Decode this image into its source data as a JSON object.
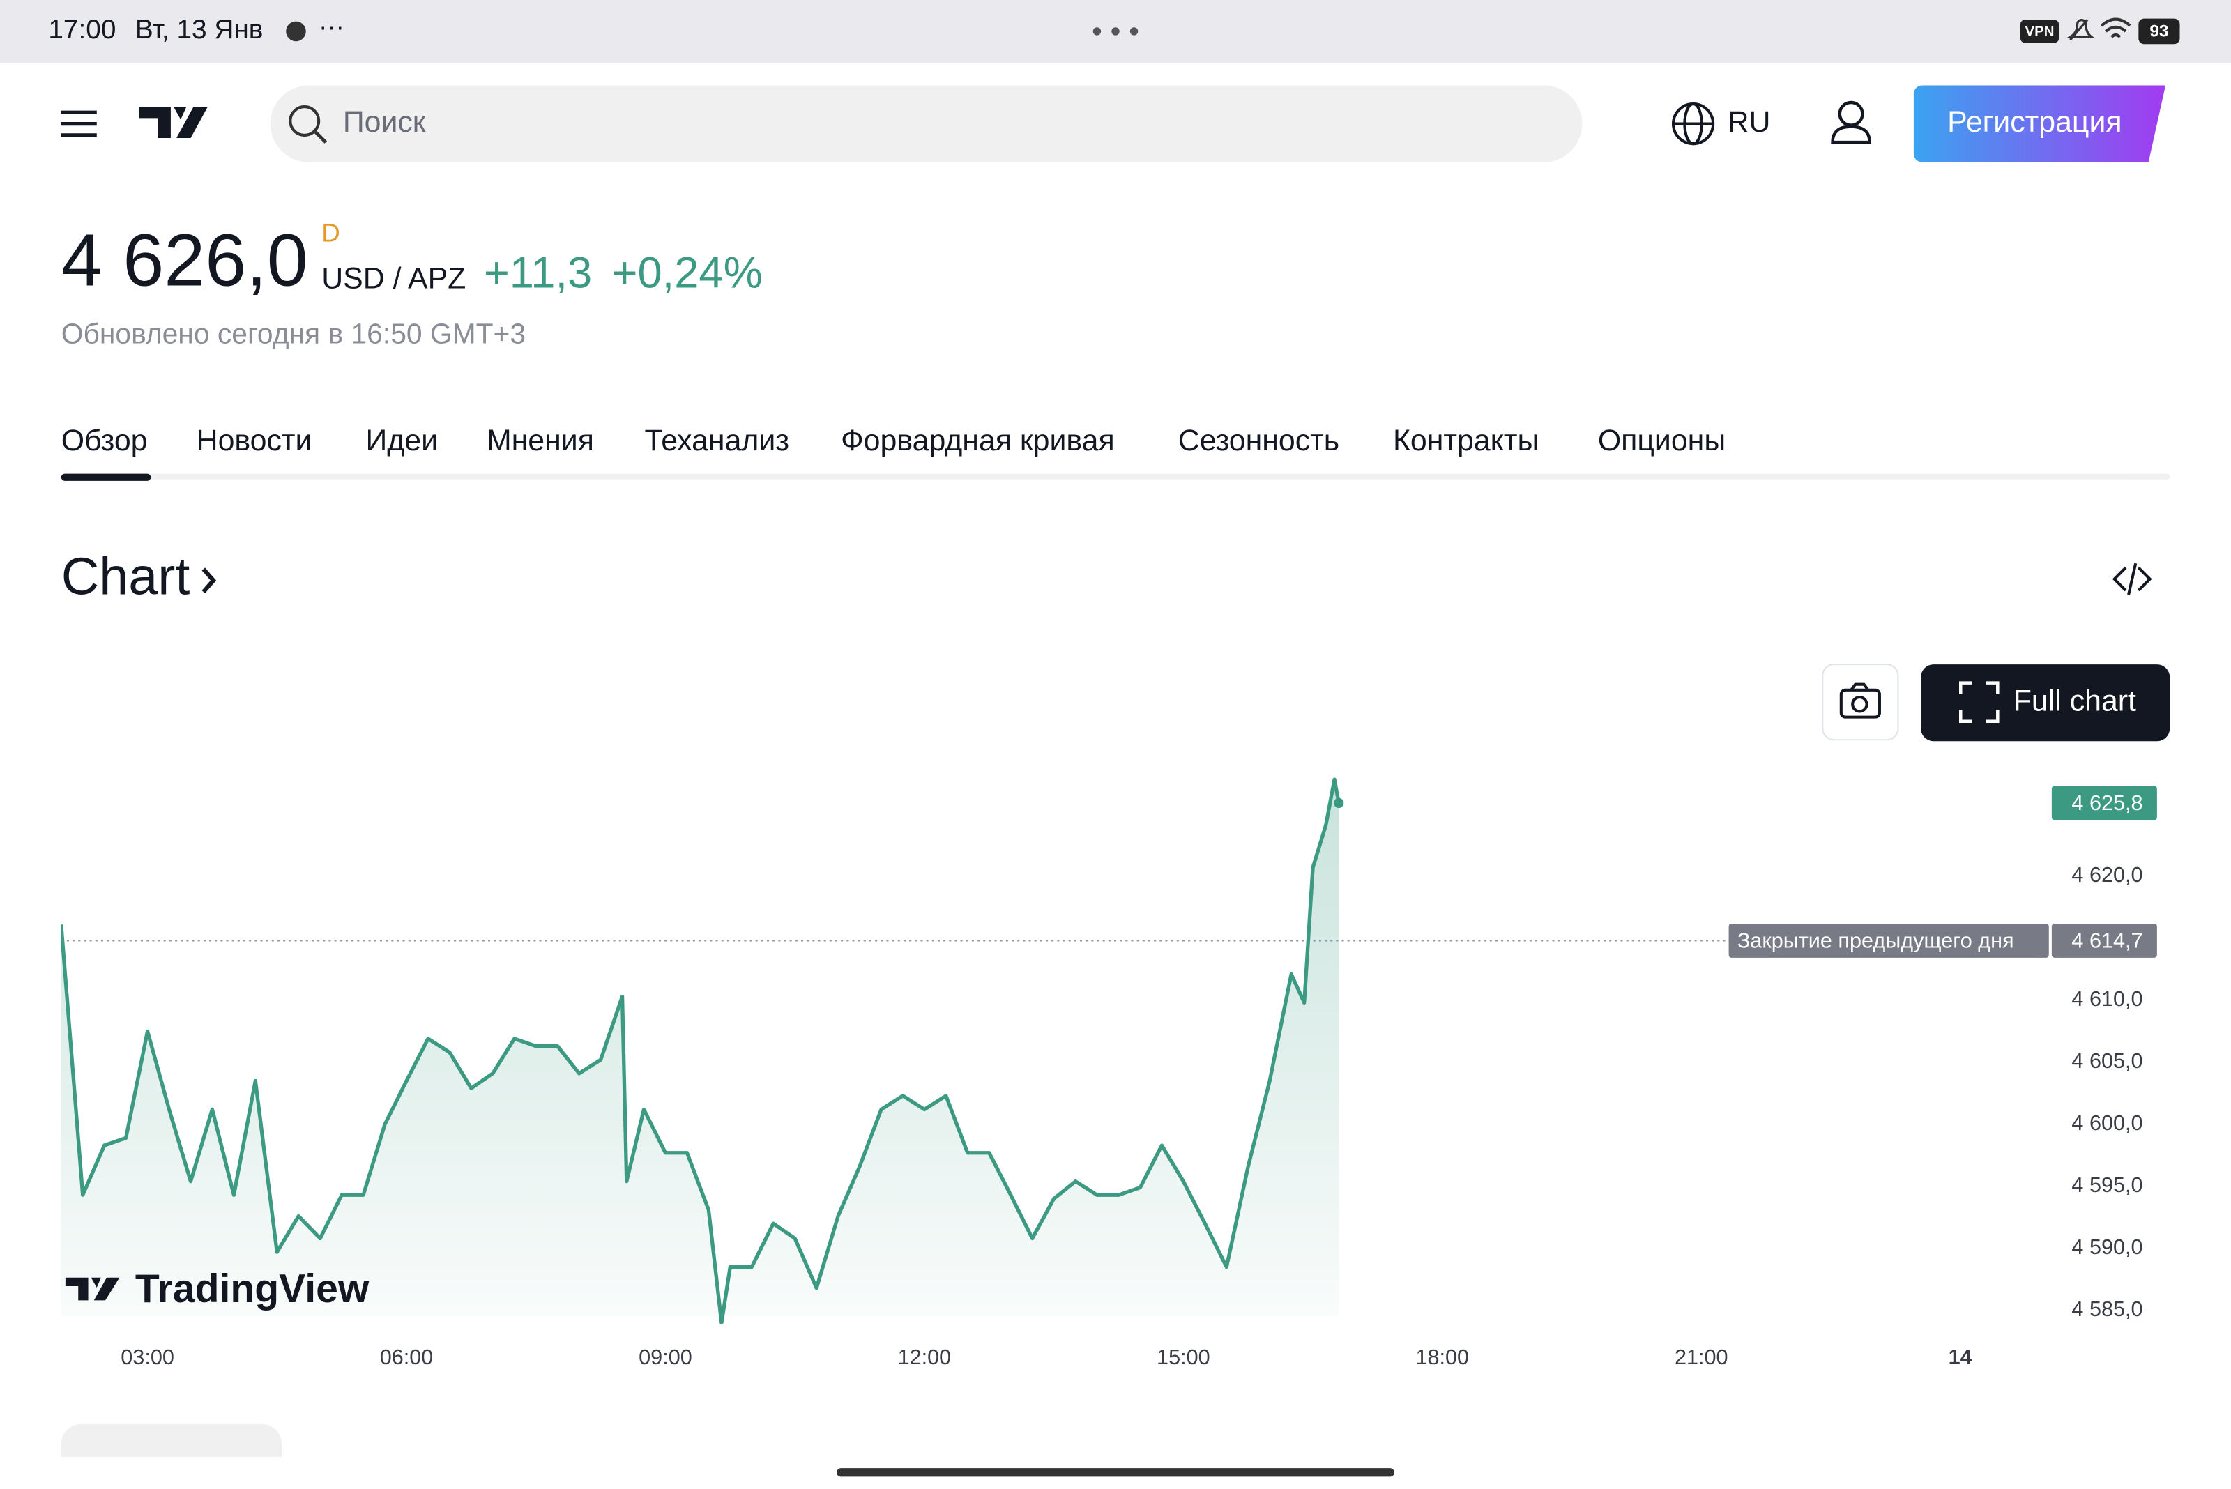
{
  "status_bar": {
    "time": "17:00",
    "date": "Вт, 13 Янв",
    "vpn": "VPN",
    "battery": "93"
  },
  "header": {
    "search_placeholder": "Поиск",
    "language": "RU",
    "register_button": "Регистрация"
  },
  "quote": {
    "price": "4 626,0",
    "interval": "D",
    "currency": "USD / APZ",
    "change": "+11,3",
    "change_percent": "+0,24%",
    "updated": "Обновлено сегодня в 16:50 GMT+3"
  },
  "tabs": [
    "Обзор",
    "Новости",
    "Идеи",
    "Мнения",
    "Теханализ",
    "Форвардная кривая",
    "Сезонность",
    "Контракты",
    "Опционы"
  ],
  "chart_section": {
    "title": "Chart",
    "full_chart_button": "Full chart",
    "watermark": "TradingView"
  },
  "chart_data": {
    "type": "line",
    "color": "#3d9a82",
    "x": [
      2.0,
      2.25,
      2.5,
      2.75,
      3.0,
      3.25,
      3.5,
      3.75,
      4.0,
      4.25,
      4.5,
      4.75,
      5.0,
      5.25,
      5.5,
      5.75,
      6.0,
      6.25,
      6.5,
      6.75,
      7.0,
      7.25,
      7.5,
      7.75,
      8.0,
      8.25,
      8.5,
      8.55,
      8.75,
      9.0,
      9.25,
      9.5,
      9.65,
      9.75,
      10.0,
      10.25,
      10.5,
      10.75,
      11.0,
      11.25,
      11.5,
      11.75,
      12.0,
      12.25,
      12.5,
      12.75,
      13.0,
      13.25,
      13.5,
      13.75,
      14.0,
      14.25,
      14.5,
      14.75,
      15.0,
      15.25,
      15.5,
      15.75,
      16.0,
      16.25,
      16.4,
      16.5,
      16.65,
      16.75,
      16.8
    ],
    "values": [
      4616.0,
      4594.2,
      4598.2,
      4598.8,
      4607.4,
      4601.1,
      4595.3,
      4601.1,
      4594.2,
      4603.4,
      4589.6,
      4592.5,
      4590.7,
      4594.2,
      4594.2,
      4599.9,
      4603.4,
      4606.8,
      4605.7,
      4602.8,
      4604.0,
      4606.8,
      4606.2,
      4606.2,
      4604.0,
      4605.1,
      4610.2,
      4595.3,
      4601.1,
      4597.6,
      4597.6,
      4593.0,
      4583.9,
      4588.4,
      4588.4,
      4591.9,
      4590.7,
      4586.7,
      4592.5,
      4596.5,
      4601.1,
      4602.2,
      4601.1,
      4602.2,
      4597.6,
      4597.6,
      4594.2,
      4590.7,
      4593.9,
      4595.3,
      4594.2,
      4594.2,
      4594.8,
      4598.2,
      4595.3,
      4591.9,
      4588.4,
      4596.5,
      4603.4,
      4612.0,
      4609.7,
      4620.6,
      4624.0,
      4627.7,
      4625.8
    ],
    "xlim": [
      2,
      25
    ],
    "xticks": [
      {
        "value": 3,
        "label": "03:00"
      },
      {
        "value": 6,
        "label": "06:00"
      },
      {
        "value": 9,
        "label": "09:00"
      },
      {
        "value": 12,
        "label": "12:00"
      },
      {
        "value": 15,
        "label": "15:00"
      },
      {
        "value": 18,
        "label": "18:00"
      },
      {
        "value": 21,
        "label": "21:00"
      },
      {
        "value": 24,
        "label": "14"
      }
    ],
    "ylim": [
      4583.3,
      4628.6
    ],
    "yticks": [
      {
        "value": 4585,
        "label": "4 585,0"
      },
      {
        "value": 4590,
        "label": "4 590,0"
      },
      {
        "value": 4595,
        "label": "4 595,0"
      },
      {
        "value": 4600,
        "label": "4 600,0"
      },
      {
        "value": 4605,
        "label": "4 605,0"
      },
      {
        "value": 4610,
        "label": "4 610,0"
      },
      {
        "value": 4620,
        "label": "4 620,0"
      }
    ],
    "grid": false,
    "last_value": {
      "value": 4625.8,
      "label": "4 625,8"
    },
    "previous_close": {
      "value": 4614.7,
      "label": "4 614,7",
      "text": "Закрытие предыдущего дня"
    }
  }
}
